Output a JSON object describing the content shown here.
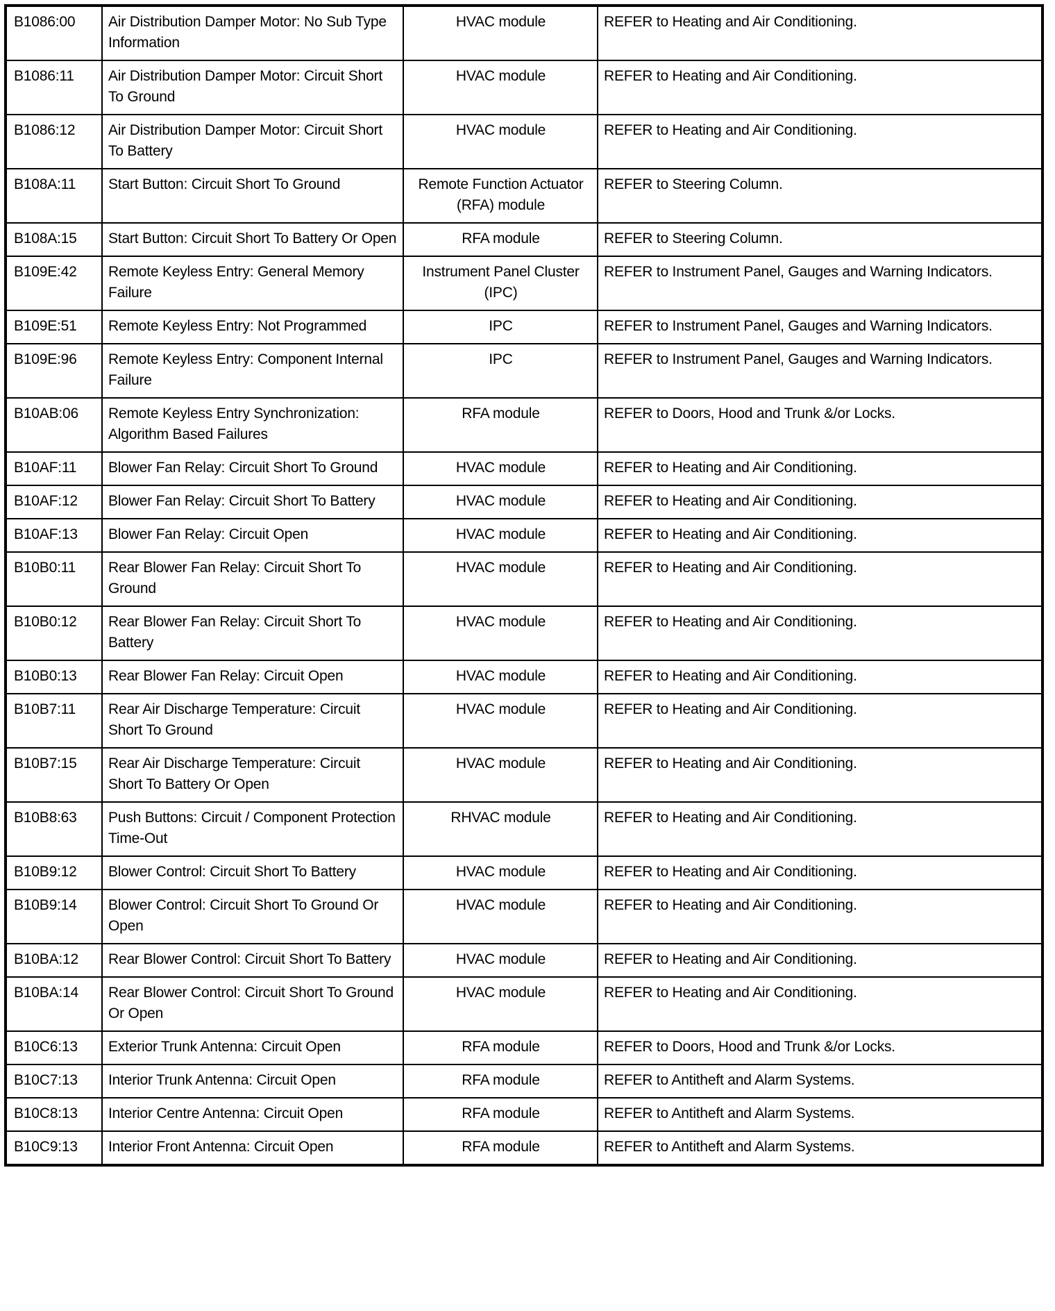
{
  "rows": [
    {
      "code": "B1086:00",
      "description": "Air Distribution Damper Motor: No Sub Type Information",
      "module": "HVAC module",
      "action": "REFER to Heating and Air Conditioning."
    },
    {
      "code": "B1086:11",
      "description": "Air Distribution Damper Motor: Circuit Short To Ground",
      "module": "HVAC module",
      "action": "REFER to Heating and Air Conditioning."
    },
    {
      "code": "B1086:12",
      "description": "Air Distribution Damper Motor: Circuit Short To Battery",
      "module": "HVAC module",
      "action": "REFER to Heating and Air Conditioning."
    },
    {
      "code": "B108A:11",
      "description": "Start Button: Circuit Short To Ground",
      "module": "Remote Function Actuator (RFA) module",
      "action": "REFER to Steering Column."
    },
    {
      "code": "B108A:15",
      "description": "Start Button: Circuit Short To Battery Or Open",
      "module": "RFA module",
      "action": "REFER to Steering Column."
    },
    {
      "code": "B109E:42",
      "description": "Remote Keyless Entry: General Memory Failure",
      "module": "Instrument Panel Cluster (IPC)",
      "action": "REFER to Instrument Panel, Gauges and Warning Indicators."
    },
    {
      "code": "B109E:51",
      "description": "Remote Keyless Entry: Not Programmed",
      "module": "IPC",
      "action": "REFER to Instrument Panel, Gauges and Warning Indicators."
    },
    {
      "code": "B109E:96",
      "description": "Remote Keyless Entry: Component Internal Failure",
      "module": "IPC",
      "action": "REFER to Instrument Panel, Gauges and Warning Indicators."
    },
    {
      "code": "B10AB:06",
      "description": "Remote Keyless Entry Synchronization: Algorithm Based Failures",
      "module": "RFA module",
      "action": "REFER to Doors, Hood and Trunk &/or Locks."
    },
    {
      "code": "B10AF:11",
      "description": "Blower Fan Relay: Circuit Short To Ground",
      "module": "HVAC module",
      "action": "REFER to Heating and Air Conditioning."
    },
    {
      "code": "B10AF:12",
      "description": "Blower Fan Relay: Circuit Short To Battery",
      "module": "HVAC module",
      "action": "REFER to Heating and Air Conditioning."
    },
    {
      "code": "B10AF:13",
      "description": "Blower Fan Relay: Circuit Open",
      "module": "HVAC module",
      "action": "REFER to Heating and Air Conditioning."
    },
    {
      "code": "B10B0:11",
      "description": "Rear Blower Fan Relay: Circuit Short To Ground",
      "module": "HVAC module",
      "action": "REFER to Heating and Air Conditioning."
    },
    {
      "code": "B10B0:12",
      "description": "Rear Blower Fan Relay: Circuit Short To Battery",
      "module": "HVAC module",
      "action": "REFER to Heating and Air Conditioning."
    },
    {
      "code": "B10B0:13",
      "description": "Rear Blower Fan Relay: Circuit Open",
      "module": "HVAC module",
      "action": "REFER to Heating and Air Conditioning."
    },
    {
      "code": "B10B7:11",
      "description": "Rear Air Discharge Temperature: Circuit Short To Ground",
      "module": "HVAC module",
      "action": "REFER to Heating and Air Conditioning."
    },
    {
      "code": "B10B7:15",
      "description": "Rear Air Discharge Temperature: Circuit Short To Battery Or Open",
      "module": "HVAC module",
      "action": "REFER to Heating and Air Conditioning."
    },
    {
      "code": "B10B8:63",
      "description": "Push Buttons: Circuit / Component Protection Time-Out",
      "module": "RHVAC module",
      "action": "REFER to Heating and Air Conditioning."
    },
    {
      "code": "B10B9:12",
      "description": "Blower Control: Circuit Short To Battery",
      "module": "HVAC module",
      "action": "REFER to Heating and Air Conditioning."
    },
    {
      "code": "B10B9:14",
      "description": "Blower Control: Circuit Short To Ground Or Open",
      "module": "HVAC module",
      "action": "REFER to Heating and Air Conditioning."
    },
    {
      "code": "B10BA:12",
      "description": "Rear Blower Control: Circuit Short To Battery",
      "module": "HVAC module",
      "action": "REFER to Heating and Air Conditioning."
    },
    {
      "code": "B10BA:14",
      "description": "Rear Blower Control: Circuit Short To Ground Or Open",
      "module": "HVAC module",
      "action": "REFER to Heating and Air Conditioning."
    },
    {
      "code": "B10C6:13",
      "description": "Exterior Trunk Antenna: Circuit Open",
      "module": "RFA module",
      "action": "REFER to Doors, Hood and Trunk &/or Locks."
    },
    {
      "code": "B10C7:13",
      "description": "Interior Trunk Antenna: Circuit Open",
      "module": "RFA module",
      "action": "REFER to Antitheft and Alarm Systems."
    },
    {
      "code": "B10C8:13",
      "description": "Interior Centre Antenna: Circuit Open",
      "module": "RFA module",
      "action": "REFER to Antitheft and Alarm Systems."
    },
    {
      "code": "B10C9:13",
      "description": "Interior Front Antenna: Circuit Open",
      "module": "RFA module",
      "action": "REFER to Antitheft and Alarm Systems."
    }
  ]
}
